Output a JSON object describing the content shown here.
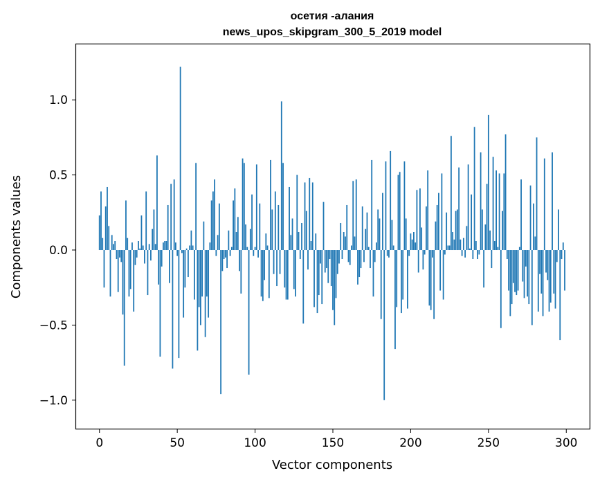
{
  "chart_data": {
    "type": "bar",
    "title": "осетия -алания",
    "subtitle": "news_upos_skipgram_300_5_2019 model",
    "xlabel": "Vector components",
    "ylabel": "Components values",
    "xlim": [
      -15,
      315
    ],
    "ylim": [
      -1.19,
      1.37
    ],
    "xticks": [
      0,
      50,
      100,
      150,
      200,
      250,
      300
    ],
    "yticks": [
      -1.0,
      -0.5,
      0.0,
      0.5,
      1.0
    ],
    "xtick_labels": [
      "0",
      "50",
      "100",
      "150",
      "200",
      "250",
      "300"
    ],
    "ytick_labels": [
      "−1.0",
      "−0.5",
      "0.0",
      "0.5",
      "1.0"
    ],
    "grid": false,
    "bar_color": "#1f77b4",
    "values": [
      0.23,
      0.39,
      0.08,
      -0.25,
      0.29,
      0.42,
      0.16,
      -0.31,
      0.1,
      0.04,
      0.06,
      -0.06,
      -0.28,
      -0.05,
      -0.08,
      -0.43,
      -0.77,
      0.33,
      0.08,
      -0.31,
      -0.26,
      0.05,
      -0.41,
      -0.1,
      -0.05,
      0.06,
      0.01,
      0.23,
      0.03,
      -0.09,
      0.39,
      -0.3,
      0.04,
      -0.07,
      0.14,
      0.27,
      0.04,
      0.63,
      -0.23,
      -0.71,
      -0.11,
      0.05,
      0.06,
      0.06,
      0.3,
      -0.22,
      0.44,
      -0.79,
      0.47,
      0.05,
      -0.04,
      -0.72,
      1.22,
      -0.02,
      -0.45,
      -0.25,
      0.01,
      -0.18,
      0.03,
      0.13,
      0.03,
      -0.33,
      0.58,
      -0.67,
      -0.38,
      -0.5,
      -0.31,
      0.19,
      -0.58,
      -0.31,
      -0.45,
      0.05,
      0.33,
      0.39,
      0.47,
      -0.04,
      0.1,
      0.31,
      -0.96,
      -0.14,
      -0.06,
      -0.05,
      -0.12,
      0.13,
      -0.04,
      0.02,
      0.33,
      0.41,
      0.12,
      0.22,
      -0.14,
      -0.29,
      0.61,
      0.58,
      0.17,
      0.02,
      -0.83,
      0.14,
      0.37,
      -0.04,
      0.02,
      0.57,
      -0.05,
      0.31,
      -0.31,
      -0.34,
      -0.2,
      0.11,
      0.03,
      -0.32,
      0.6,
      0.27,
      -0.16,
      0.39,
      -0.24,
      0.3,
      -0.16,
      0.99,
      0.58,
      -0.25,
      -0.33,
      -0.33,
      0.42,
      0.1,
      0.21,
      -0.26,
      -0.31,
      0.5,
      0.12,
      -0.06,
      0.18,
      -0.49,
      0.45,
      0.26,
      -0.13,
      0.48,
      0.06,
      0.45,
      -0.38,
      0.11,
      -0.42,
      -0.3,
      -0.09,
      -0.36,
      0.32,
      -0.15,
      -0.12,
      -0.22,
      -0.06,
      -0.24,
      -0.4,
      -0.5,
      -0.32,
      -0.16,
      -0.09,
      0.18,
      -0.06,
      0.12,
      0.09,
      0.3,
      -0.08,
      -0.1,
      0.03,
      0.46,
      0.09,
      0.47,
      -0.23,
      -0.18,
      -0.12,
      0.29,
      -0.08,
      0.14,
      0.25,
      0.02,
      -0.12,
      0.6,
      -0.31,
      -0.08,
      0.05,
      0.27,
      0.21,
      -0.46,
      0.38,
      -1.0,
      0.59,
      -0.04,
      -0.05,
      0.66,
      0.2,
      0.03,
      -0.66,
      -0.38,
      0.5,
      0.52,
      -0.42,
      -0.33,
      0.59,
      0.21,
      -0.39,
      -0.04,
      0.11,
      0.07,
      0.12,
      0.05,
      0.4,
      -0.15,
      0.41,
      0.15,
      -0.13,
      -0.03,
      0.29,
      0.53,
      -0.37,
      -0.4,
      -0.05,
      -0.46,
      0.19,
      0.3,
      0.38,
      -0.27,
      0.51,
      -0.33,
      -0.03,
      0.25,
      0.03,
      0.03,
      0.76,
      0.12,
      0.07,
      0.26,
      0.27,
      0.55,
      0.07,
      -0.04,
      0.08,
      -0.05,
      0.16,
      0.57,
      0.01,
      0.37,
      -0.06,
      0.82,
      0.06,
      -0.06,
      -0.03,
      0.65,
      0.27,
      -0.25,
      0.17,
      0.44,
      0.9,
      0.13,
      -0.12,
      0.62,
      0.06,
      0.53,
      0.02,
      0.51,
      -0.52,
      0.26,
      0.51,
      0.77,
      -0.06,
      -0.27,
      -0.44,
      -0.36,
      -0.22,
      -0.28,
      -0.3,
      -0.27,
      0.02,
      0.47,
      -0.21,
      -0.32,
      -0.11,
      -0.31,
      -0.36,
      0.43,
      -0.5,
      0.31,
      0.09,
      0.75,
      -0.41,
      -0.16,
      -0.29,
      -0.44,
      0.61,
      -0.15,
      -0.2,
      -0.41,
      -0.35,
      0.65,
      -0.29,
      -0.39,
      -0.08,
      0.27,
      -0.6,
      -0.06,
      0.05,
      -0.27
    ],
    "note_values_index_range": [
      0,
      299
    ]
  }
}
